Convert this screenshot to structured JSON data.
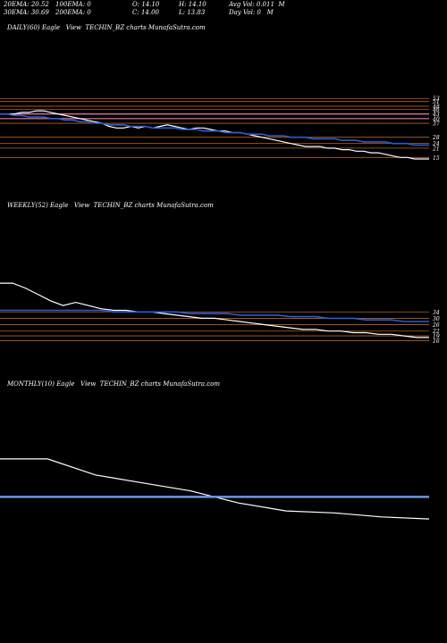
{
  "header": {
    "ema20": "20EMA: 20.52",
    "ema100": "100EMA: 0",
    "open": "O: 14.10",
    "high": "H: 14.10",
    "avg_vol": "Avg Vol: 0.011  M",
    "ema30": "30EMA: 30.69",
    "ema200": "200EMA: 0",
    "close": "C: 14.00",
    "low": "L: 13.83",
    "day_vol": "Day Vol: 0   M"
  },
  "panels": {
    "daily_title": "DAILY(60) Eagle   View  TECHIN_BZ charts MunafaSutra.com",
    "weekly_title": "WEEKLY(52) Eagle   View  TECHIN_BZ charts MunafaSutra.com",
    "monthly_title": "MONTHLY(10) Eagle   View  TECHIN_BZ charts MunafaSutra.com"
  },
  "colors": {
    "background": "#000000",
    "price_line": "#ffffff",
    "ema_line": "#2a5bd7",
    "level_line": "#b5651d",
    "pink_level": "#e87aa0",
    "monthly_ema": "#6a9ae8"
  },
  "chart_data": [
    {
      "type": "line",
      "title": "DAILY(60)",
      "series": [
        {
          "values": [
            43,
            43,
            43,
            44,
            44,
            45,
            45,
            44,
            43,
            42,
            41,
            40,
            39,
            38,
            37,
            35,
            34,
            34,
            35,
            34,
            35,
            34,
            35,
            36,
            35,
            34,
            33,
            34,
            34,
            33,
            32,
            32,
            31,
            31,
            30,
            29,
            28,
            27,
            26,
            25,
            24,
            23,
            22,
            22,
            22,
            21,
            21,
            20,
            20,
            19,
            19,
            18,
            18,
            17,
            16,
            15,
            15,
            14,
            14,
            14
          ]
        },
        {
          "values": [
            43,
            43,
            42,
            42,
            41,
            41,
            41,
            40,
            40,
            39,
            39,
            38,
            38,
            37,
            37,
            36,
            36,
            36,
            35,
            35,
            35,
            34,
            34,
            34,
            34,
            33,
            33,
            33,
            32,
            32,
            32,
            31,
            31,
            31,
            30,
            30,
            30,
            29,
            29,
            29,
            28,
            28,
            28,
            27,
            27,
            27,
            27,
            26,
            26,
            26,
            25,
            25,
            25,
            25,
            24,
            24,
            24,
            23,
            23,
            23
          ]
        }
      ],
      "levels": [
        {
          "label": "53",
          "value": 53
        },
        {
          "label": "51",
          "value": 51
        },
        {
          "label": "48",
          "value": 48
        },
        {
          "label": "46",
          "value": 46
        },
        {
          "label": "43",
          "value": 43
        },
        {
          "label": "40",
          "value": 40
        },
        {
          "label": "37",
          "value": 37
        },
        {
          "label": "28",
          "value": 28
        },
        {
          "label": "24",
          "value": 24
        },
        {
          "label": "21",
          "value": 21
        },
        {
          "label": "15",
          "value": 15
        }
      ]
    },
    {
      "type": "line",
      "title": "WEEKLY(52)",
      "series": [
        {
          "values": [
            52,
            52,
            49,
            45,
            41,
            38,
            40,
            38,
            36,
            35,
            35,
            34,
            34,
            33,
            32,
            31,
            30,
            30,
            29,
            28,
            27,
            26,
            25,
            24,
            23,
            23,
            22,
            22,
            21,
            21,
            20,
            20,
            19,
            18,
            18
          ]
        },
        {
          "values": [
            35,
            35,
            35,
            35,
            35,
            35,
            35,
            35,
            35,
            34,
            34,
            34,
            34,
            34,
            34,
            33,
            33,
            33,
            33,
            32,
            32,
            32,
            32,
            31,
            31,
            31,
            30,
            30,
            30,
            29,
            29,
            29,
            28,
            28,
            28
          ]
        }
      ],
      "levels": [
        {
          "label": "34",
          "value": 34
        },
        {
          "label": "30",
          "value": 30
        },
        {
          "label": "26",
          "value": 26
        },
        {
          "label": "22",
          "value": 22
        },
        {
          "label": "19",
          "value": 19
        },
        {
          "label": "16",
          "value": 16
        }
      ]
    },
    {
      "type": "line",
      "title": "MONTHLY(10)",
      "series": [
        {
          "values": [
            52,
            52,
            44,
            40,
            36,
            30,
            26,
            25,
            23,
            22
          ]
        },
        {
          "values": [
            33,
            33,
            33,
            33,
            33,
            33,
            33,
            33,
            33,
            33
          ]
        }
      ],
      "levels": []
    }
  ]
}
